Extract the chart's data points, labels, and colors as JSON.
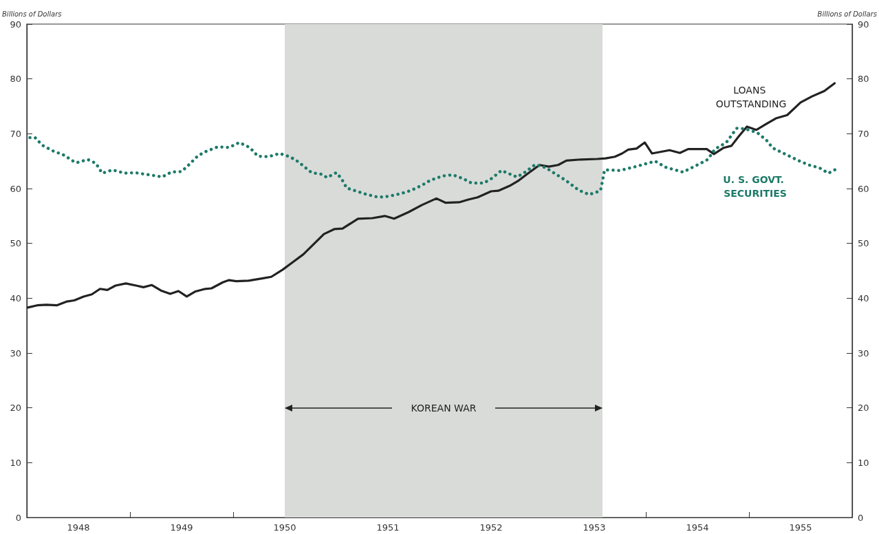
{
  "chart_data": {
    "type": "line",
    "ylabel": "Billions of Dollars",
    "y2label": "Billions of Dollars",
    "xlim": [
      1948,
      1956
    ],
    "xticks": [
      {
        "value": 1948.5,
        "label": "1948"
      },
      {
        "value": 1949,
        "label": null
      },
      {
        "value": 1949.5,
        "label": "1949"
      },
      {
        "value": 1950,
        "label": null
      },
      {
        "value": 1950.5,
        "label": "1950"
      },
      {
        "value": 1951,
        "label": null
      },
      {
        "value": 1951.5,
        "label": "1951"
      },
      {
        "value": 1952,
        "label": null
      },
      {
        "value": 1952.5,
        "label": "1952"
      },
      {
        "value": 1953,
        "label": null
      },
      {
        "value": 1953.5,
        "label": "1953"
      },
      {
        "value": 1954,
        "label": null
      },
      {
        "value": 1954.5,
        "label": "1954"
      },
      {
        "value": 1955,
        "label": null
      },
      {
        "value": 1955.5,
        "label": "1955"
      }
    ],
    "ylim": [
      0,
      90
    ],
    "yticks": [
      0,
      10,
      20,
      30,
      40,
      50,
      60,
      70,
      80,
      90
    ],
    "y2lim": [
      0,
      90
    ],
    "y2ticks": [
      0,
      10,
      20,
      30,
      40,
      50,
      60,
      70,
      80,
      90
    ],
    "grid": false,
    "legend": false,
    "marker": "none",
    "bands": [
      {
        "axis": "x",
        "from": 1950.5,
        "to": 1953.58,
        "label": "KOREAN WAR",
        "color": "#d9dbd9"
      }
    ],
    "series": [
      {
        "name": "LOANS OUTSTANDING",
        "color": "#222222",
        "line_style": "solid",
        "x": [
          1948.01,
          1948.1,
          1948.19,
          1948.29,
          1948.39,
          1948.46,
          1948.55,
          1948.63,
          1948.71,
          1948.78,
          1948.86,
          1948.96,
          1949.06,
          1949.13,
          1949.21,
          1949.3,
          1949.39,
          1949.47,
          1949.55,
          1949.63,
          1949.73,
          1949.79,
          1949.9,
          1949.96,
          1950.03,
          1950.15,
          1950.28,
          1950.37,
          1950.48,
          1950.58,
          1950.68,
          1950.88,
          1950.98,
          1951.06,
          1951.21,
          1951.35,
          1951.47,
          1951.56,
          1951.7,
          1951.83,
          1951.97,
          1952.06,
          1952.19,
          1952.28,
          1952.37,
          1952.5,
          1952.57,
          1952.68,
          1952.77,
          1952.86,
          1952.97,
          1953.06,
          1953.15,
          1953.23,
          1953.37,
          1953.53,
          1953.61,
          1953.7,
          1953.77,
          1953.83,
          1953.91,
          1953.99,
          1954.06,
          1954.23,
          1954.33,
          1954.41,
          1954.59,
          1954.66,
          1954.75,
          1954.83,
          1954.9,
          1954.98,
          1955.07,
          1955.17,
          1955.26,
          1955.37,
          1955.5,
          1955.61,
          1955.73,
          1955.83
        ],
        "values": [
          38.3,
          38.7,
          38.8,
          38.7,
          39.4,
          39.6,
          40.3,
          40.7,
          41.7,
          41.5,
          42.3,
          42.7,
          42.3,
          42.0,
          42.4,
          41.4,
          40.8,
          41.3,
          40.3,
          41.2,
          41.7,
          41.8,
          42.9,
          43.3,
          43.1,
          43.2,
          43.6,
          43.9,
          45.2,
          46.6,
          48.0,
          51.7,
          52.6,
          52.7,
          54.5,
          54.6,
          55.0,
          54.5,
          55.7,
          57.0,
          58.2,
          57.4,
          57.5,
          58.0,
          58.4,
          59.5,
          59.6,
          60.5,
          61.5,
          62.8,
          64.3,
          64.0,
          64.3,
          65.1,
          65.3,
          65.4,
          65.5,
          65.8,
          66.4,
          67.1,
          67.3,
          68.4,
          66.4,
          67.0,
          66.5,
          67.2,
          67.2,
          66.3,
          67.4,
          67.8,
          69.5,
          71.3,
          70.7,
          71.8,
          72.8,
          73.4,
          75.7,
          76.8,
          77.8,
          79.2
        ]
      },
      {
        "name": "U. S. GOVT. SECURITIES",
        "color": "#1c7a68",
        "line_style": "dotted",
        "x": [
          1948.03,
          1948.08,
          1948.15,
          1948.25,
          1948.36,
          1948.44,
          1948.48,
          1948.59,
          1948.67,
          1948.73,
          1948.83,
          1948.95,
          1949.05,
          1949.15,
          1949.26,
          1949.31,
          1949.4,
          1949.5,
          1949.58,
          1949.66,
          1949.74,
          1949.85,
          1949.96,
          1950.06,
          1950.16,
          1950.24,
          1950.34,
          1950.45,
          1950.55,
          1950.63,
          1950.76,
          1950.86,
          1950.91,
          1951.0,
          1951.05,
          1951.1,
          1951.2,
          1951.3,
          1951.41,
          1951.51,
          1951.63,
          1951.73,
          1951.83,
          1951.91,
          1952.03,
          1952.13,
          1952.23,
          1952.31,
          1952.43,
          1952.51,
          1952.6,
          1952.75,
          1952.83,
          1952.93,
          1953.03,
          1953.13,
          1953.23,
          1953.35,
          1953.45,
          1953.56,
          1953.58,
          1953.6,
          1953.75,
          1953.9,
          1954.09,
          1954.19,
          1954.36,
          1954.53,
          1954.6,
          1954.67,
          1954.78,
          1954.88,
          1954.96,
          1955.08,
          1955.17,
          1955.23,
          1955.37,
          1955.48,
          1955.58,
          1955.68,
          1955.77,
          1955.85
        ],
        "values": [
          69.3,
          69.3,
          67.9,
          66.9,
          66.1,
          65.1,
          64.7,
          65.3,
          64.6,
          62.8,
          63.4,
          62.8,
          62.9,
          62.6,
          62.3,
          62.1,
          63.0,
          63.1,
          64.5,
          66.0,
          66.8,
          67.6,
          67.5,
          68.4,
          67.5,
          65.9,
          65.8,
          66.4,
          65.8,
          64.9,
          62.9,
          62.6,
          62.0,
          62.9,
          61.8,
          60.1,
          59.5,
          58.9,
          58.4,
          58.6,
          59.1,
          59.7,
          60.6,
          61.5,
          62.3,
          62.5,
          61.8,
          61.0,
          61.0,
          61.9,
          63.3,
          62.1,
          63.0,
          64.4,
          63.8,
          62.6,
          61.4,
          59.7,
          58.9,
          59.6,
          61.4,
          63.4,
          63.3,
          64.0,
          65.0,
          63.9,
          63.0,
          64.6,
          65.3,
          67.2,
          68.4,
          71.0,
          70.9,
          70.2,
          68.8,
          67.4,
          66.1,
          65.1,
          64.3,
          63.8,
          62.8,
          63.6
        ]
      }
    ]
  }
}
